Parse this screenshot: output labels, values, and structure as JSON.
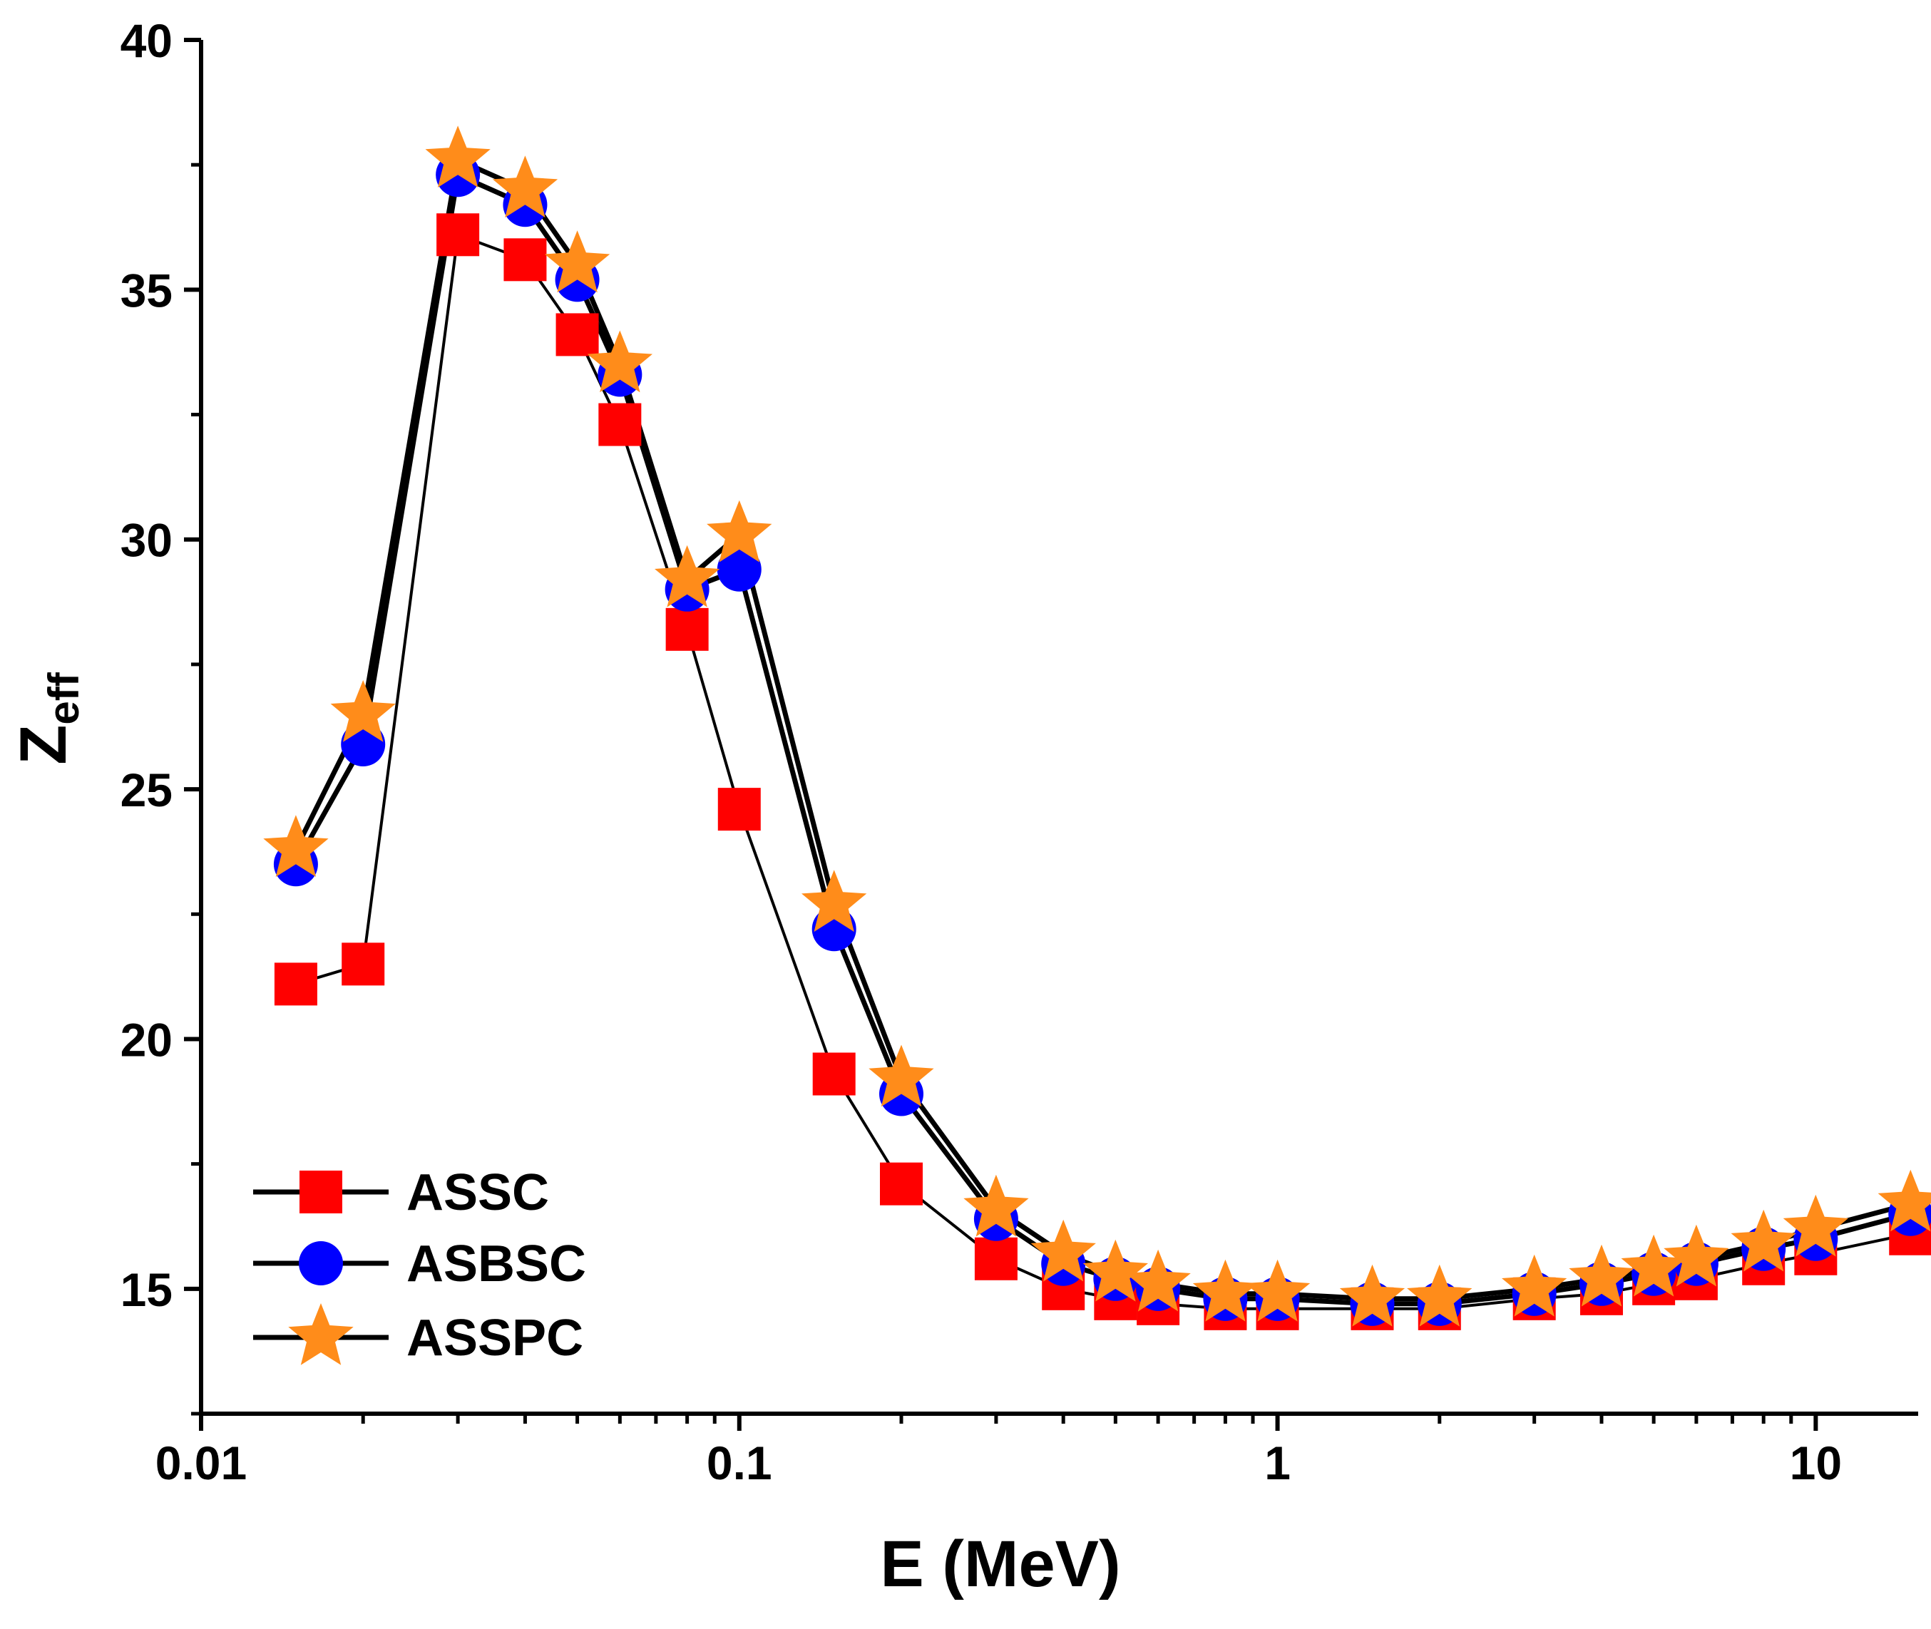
{
  "chart_data": {
    "type": "line",
    "xscale": "log",
    "xlabel": "E (MeV)",
    "ylabel": {
      "main": "Z",
      "sub": "eff"
    },
    "xlim": [
      0.01,
      15.5
    ],
    "ylim": [
      12.5,
      40
    ],
    "x_ticks": [
      {
        "value": 0.01,
        "label": "0.01"
      },
      {
        "value": 0.1,
        "label": "0.1"
      },
      {
        "value": 1,
        "label": "1"
      },
      {
        "value": 10,
        "label": "10"
      }
    ],
    "y_ticks": [
      {
        "value": 15,
        "label": "15"
      },
      {
        "value": 20,
        "label": "20"
      },
      {
        "value": 25,
        "label": "25"
      },
      {
        "value": 30,
        "label": "30"
      },
      {
        "value": 35,
        "label": "35"
      },
      {
        "value": 40,
        "label": "40"
      }
    ],
    "x": [
      0.015,
      0.02,
      0.03,
      0.04,
      0.05,
      0.06,
      0.08,
      0.1,
      0.15,
      0.2,
      0.3,
      0.4,
      0.5,
      0.6,
      0.8,
      1,
      1.5,
      2,
      3,
      4,
      5,
      6,
      8,
      10,
      15
    ],
    "series": [
      {
        "name": "ASSC",
        "marker": "square",
        "color": "#ff0000",
        "values": [
          21.1,
          21.5,
          36.1,
          35.6,
          34.1,
          32.3,
          28.2,
          24.6,
          19.3,
          17.1,
          15.6,
          15.0,
          14.8,
          14.7,
          14.6,
          14.6,
          14.6,
          14.6,
          14.8,
          14.9,
          15.1,
          15.2,
          15.5,
          15.7,
          16.1
        ]
      },
      {
        "name": "ASBSC",
        "marker": "circle",
        "color": "#0000ff",
        "values": [
          23.5,
          25.9,
          37.3,
          36.7,
          35.2,
          33.3,
          29.0,
          29.4,
          22.2,
          18.9,
          16.4,
          15.5,
          15.2,
          15.0,
          14.8,
          14.8,
          14.7,
          14.7,
          14.9,
          15.1,
          15.3,
          15.5,
          15.8,
          16.0,
          16.5
        ]
      },
      {
        "name": "ASSPC",
        "marker": "star",
        "color": "#ff8c1a",
        "values": [
          23.8,
          26.5,
          37.6,
          37.0,
          35.5,
          33.5,
          29.2,
          30.1,
          22.7,
          19.2,
          16.6,
          15.7,
          15.3,
          15.1,
          14.9,
          14.9,
          14.8,
          14.8,
          15.0,
          15.2,
          15.4,
          15.6,
          15.9,
          16.2,
          16.7
        ]
      }
    ],
    "legend": {
      "position": "bottom-left",
      "entries": [
        "ASSC",
        "ASBSC",
        "ASSPC"
      ]
    }
  }
}
